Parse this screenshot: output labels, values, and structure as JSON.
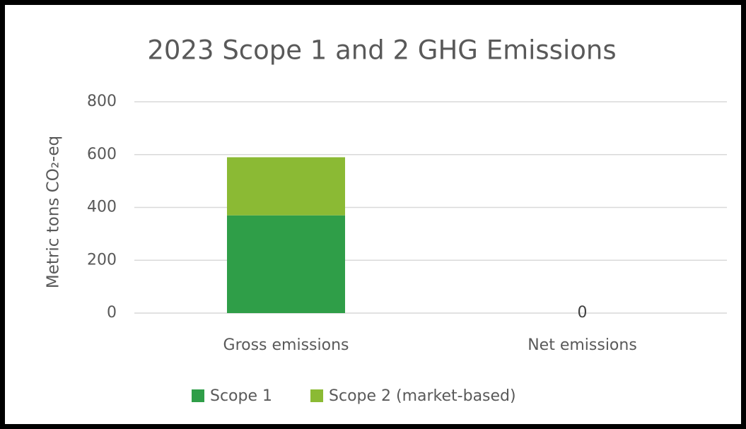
{
  "chart_data": {
    "type": "stacked_bar",
    "title": "2023 Scope 1 and 2 GHG Emissions",
    "y_axis_label": "Metric tons CO₂-eq",
    "categories": [
      "Gross emissions",
      "Net emissions"
    ],
    "series": [
      {
        "name": "Scope 1",
        "color": "#2f9e48",
        "values": [
          370,
          0
        ]
      },
      {
        "name": "Scope 2 (market-based)",
        "color": "#8bba34",
        "values": [
          220,
          0
        ]
      }
    ],
    "show_data_label": [
      false,
      true
    ],
    "ylim": [
      0,
      800
    ],
    "yticks": [
      0,
      200,
      400,
      600,
      800
    ],
    "grid": true,
    "legend": "bottom"
  }
}
